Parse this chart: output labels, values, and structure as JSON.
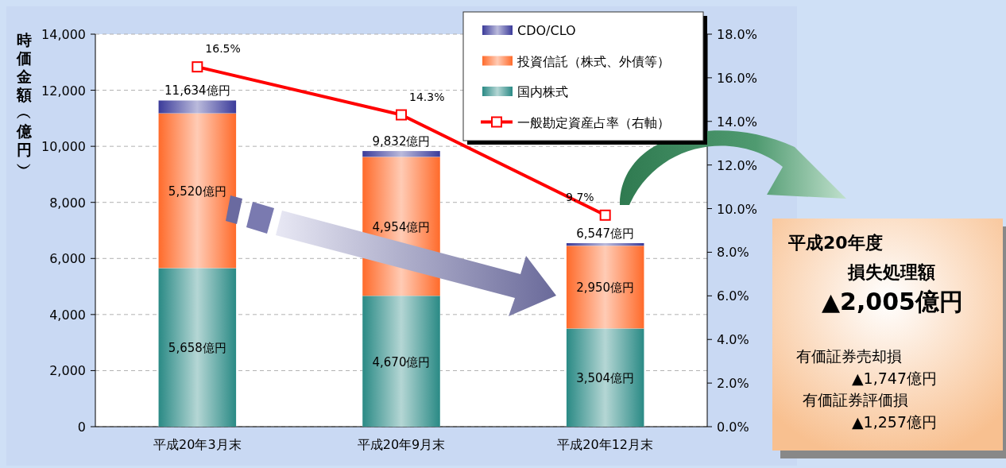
{
  "chart_data": {
    "type": "bar",
    "stacked": true,
    "ylabel": "時価金額︵億円︶",
    "categories": [
      "平成20年3月末",
      "平成20年9月末",
      "平成20年12月末"
    ],
    "series": [
      {
        "name": "国内株式",
        "color": "#2a8a85",
        "values": [
          5658,
          4670,
          3504
        ],
        "value_labels": [
          "5,658億円",
          "4,670億円",
          "3,504億円"
        ]
      },
      {
        "name": "投資信託（株式、外債等）",
        "color": "#ff6b2b",
        "values": [
          5520,
          4954,
          2950
        ],
        "value_labels": [
          "5,520億円",
          "4,954億円",
          "2,950億円"
        ]
      },
      {
        "name": "CDO/CLO",
        "color": "#3b3b9a",
        "values": [
          456,
          208,
          93
        ]
      },
      {
        "name": "一般勘定資産占率（右軸）",
        "type": "line",
        "axis": "y2",
        "color": "#ff0000",
        "values": [
          16.5,
          14.3,
          9.7
        ],
        "value_labels": [
          "16.5%",
          "14.3%",
          "9.7%"
        ]
      }
    ],
    "totals": [
      "11,634億円",
      "9,832億円",
      "6,547億円"
    ],
    "ylim": [
      0,
      14000
    ],
    "yticks": [
      0,
      {
        "value": 2000,
        "label": "2,000"
      },
      {
        "value": 4000,
        "label": "4,000"
      },
      {
        "value": 6000,
        "label": "6,000"
      },
      {
        "value": 8000,
        "label": "8,000"
      },
      {
        "value": 10000,
        "label": "10,000"
      },
      {
        "value": 12000,
        "label": "12,000"
      },
      {
        "value": 14000,
        "label": "14,000"
      }
    ],
    "y2lim": [
      0,
      18
    ],
    "y2ticks": [
      {
        "value": 0,
        "label": "0.0%"
      },
      {
        "value": 2,
        "label": "2.0%"
      },
      {
        "value": 4,
        "label": "4.0%"
      },
      {
        "value": 6,
        "label": "6.0%"
      },
      {
        "value": 8,
        "label": "8.0%"
      },
      {
        "value": 10,
        "label": "10.0%"
      },
      {
        "value": 12,
        "label": "12.0%"
      },
      {
        "value": 14,
        "label": "14.0%"
      },
      {
        "value": 16,
        "label": "16.0%"
      },
      {
        "value": 18,
        "label": "18.0%"
      }
    ],
    "grid": "y",
    "legend": "top right",
    "marker": "square",
    "annotations": [
      "平成20年度",
      "損失処理額",
      "▲2,005億円",
      "有価証券売却損",
      "▲1,747億円",
      "有価証券評価損",
      "▲1,257億円"
    ]
  }
}
